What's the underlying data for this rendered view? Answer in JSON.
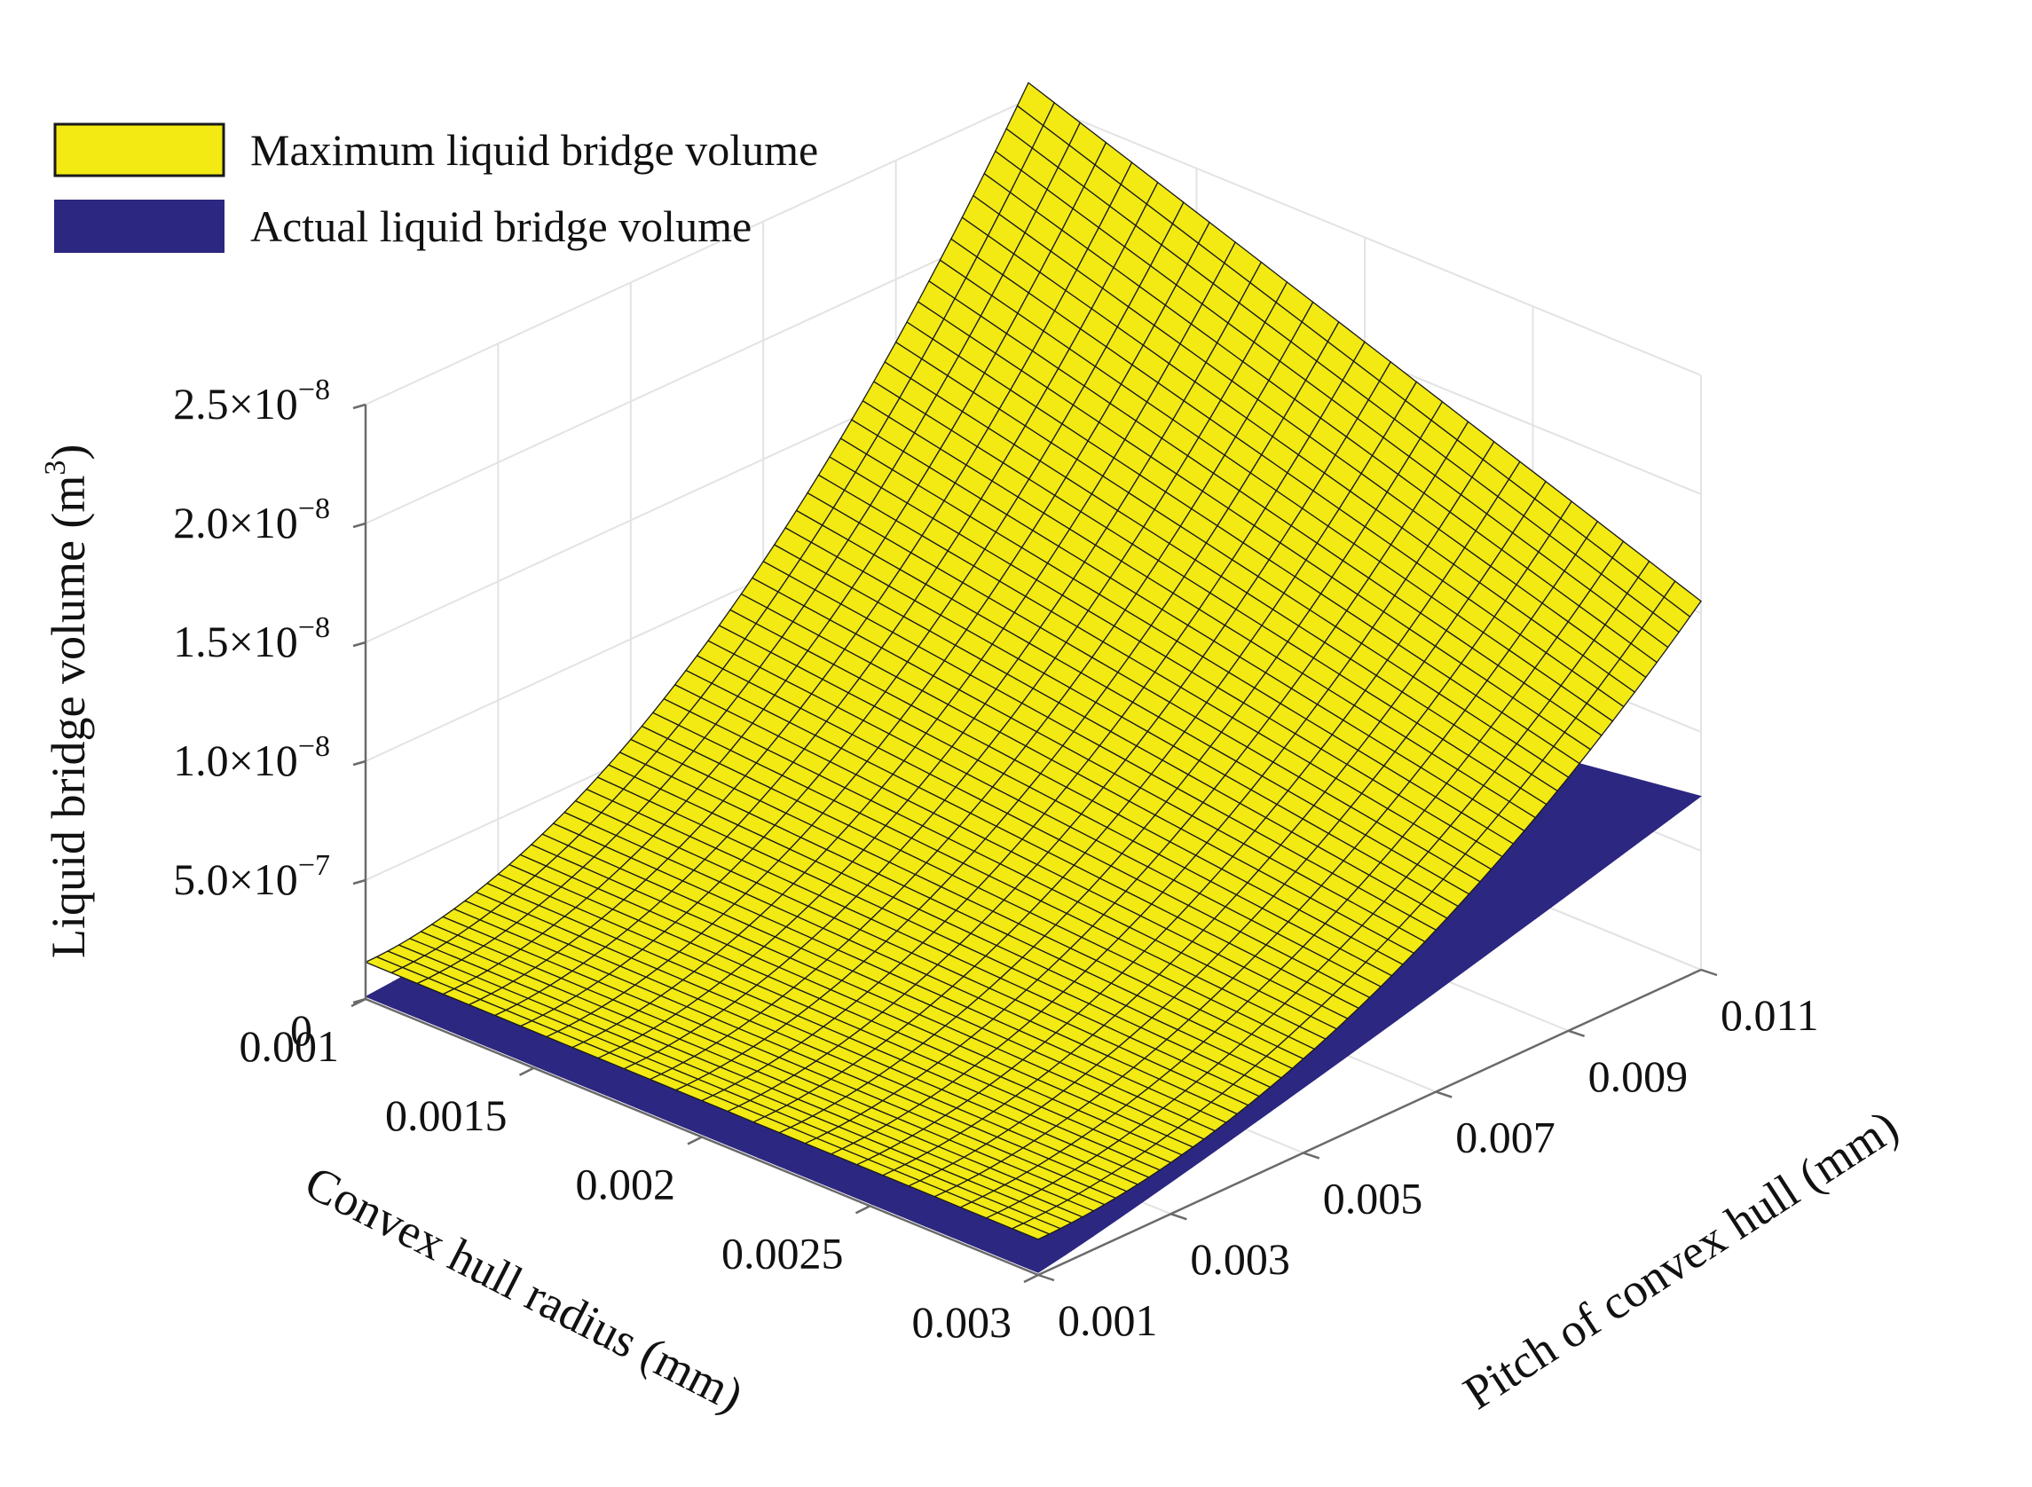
{
  "chart_data": {
    "type": "surface",
    "xlabel": "Convex hull radius (mm)",
    "ylabel": "Pitch of convex hull (mm)",
    "zlabel": "Liquid bridge volume (m3)",
    "zlabel_parts": {
      "base": "Liquid bridge volume (m",
      "sup": "3",
      "close": ")"
    },
    "x_ticks": [
      "0.001",
      "0.0015",
      "0.002",
      "0.0025",
      "0.003"
    ],
    "y_ticks": [
      "0.001",
      "0.003",
      "0.005",
      "0.007",
      "0.009",
      "0.011"
    ],
    "z_ticks": [
      {
        "mant": "0",
        "exp": ""
      },
      {
        "mant": "5.0×10",
        "exp": "−7"
      },
      {
        "mant": "1.0×10",
        "exp": "−8"
      },
      {
        "mant": "1.5×10",
        "exp": "−8"
      },
      {
        "mant": "2.0×10",
        "exp": "−8"
      },
      {
        "mant": "2.5×10",
        "exp": "−8"
      }
    ],
    "xlim": [
      0.001,
      0.003
    ],
    "ylim": [
      0.001,
      0.011
    ],
    "zlim": [
      0,
      2.5e-08
    ],
    "grid": true,
    "legend_position": "top-left",
    "series": [
      {
        "name": "Maximum liquid bridge volume",
        "color": "#f2ea12",
        "edge_color": "#1a1a1a",
        "x_range": [
          0.001,
          0.003
        ],
        "y_range": [
          0.001,
          0.011
        ],
        "corner_values": {
          "x0_y0": 1.55e-09,
          "x1_y0": 1.5e-09,
          "x0_y1": 2.57e-08,
          "x1_y1": 1.55e-08
        }
      },
      {
        "name": "Actual liquid bridge volume",
        "color": "#2c2780",
        "x_range": [
          0.001,
          0.003
        ],
        "y_range": [
          0.001,
          0.011
        ],
        "corner_values": {
          "x0_y0": 1e-10,
          "x1_y0": 1e-10,
          "x0_y1": 3.3e-09,
          "x1_y1": 7.3e-09
        }
      }
    ]
  }
}
